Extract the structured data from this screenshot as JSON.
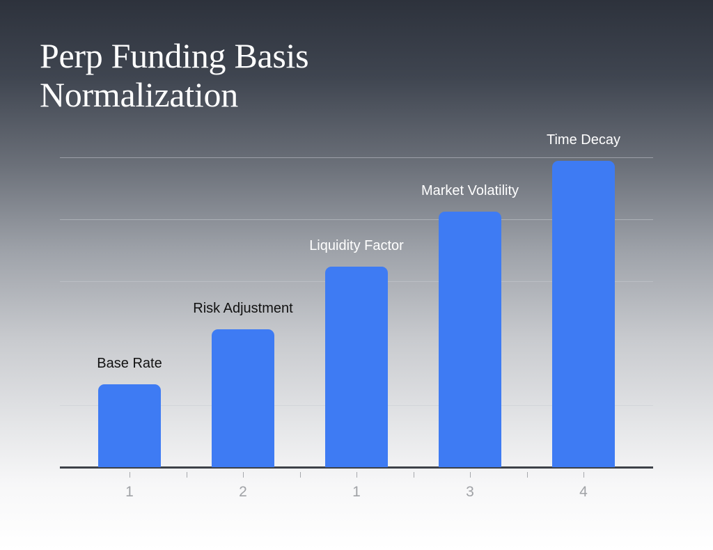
{
  "title": "Perp Funding Basis Normalization",
  "colors": {
    "bar": "#3e7bf3",
    "title": "#ffffff",
    "label_light": "#ffffff",
    "label_dark": "#111111",
    "axis": "#3d4148",
    "tick_label": "#a0a2a6"
  },
  "chart_data": {
    "type": "bar",
    "title": "Perp Funding Basis Normalization",
    "categories": [
      "Base Rate",
      "Risk Adjustment",
      "Liquidity Factor",
      "Market Volatility",
      "Time Decay"
    ],
    "values": [
      1.34,
      2.22,
      3.24,
      4.12,
      4.94
    ],
    "tick_labels": [
      "1",
      "2",
      "1",
      "3",
      "4"
    ],
    "xlabel": "",
    "ylabel": "",
    "ylim": [
      0,
      5
    ],
    "grid": true,
    "y_gridlines": [
      1,
      2,
      3,
      4,
      5
    ],
    "y_tick_labels_visible": false,
    "legend": null,
    "annotations": "Category names shown as labels above each bar"
  }
}
